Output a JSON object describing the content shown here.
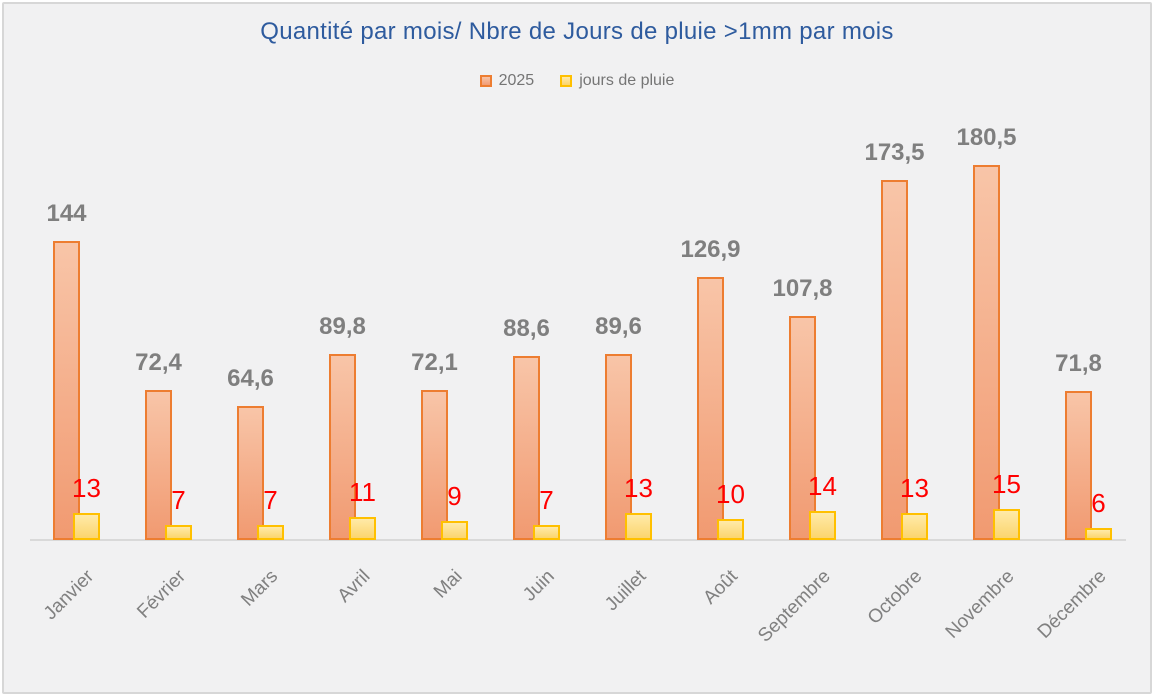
{
  "chart_data": {
    "type": "bar",
    "title": "Quantité par mois/ Nbre de Jours de pluie >1mm par mois",
    "categories": [
      "Janvier",
      "Février",
      "Mars",
      "Avril",
      "Mai",
      "Juin",
      "Juillet",
      "Août",
      "Septembre",
      "Octobre",
      "Novembre",
      "Décembre"
    ],
    "series": [
      {
        "name": "2025",
        "values": [
          144,
          72.4,
          64.6,
          89.8,
          72.1,
          88.6,
          89.6,
          126.9,
          107.8,
          173.5,
          180.5,
          71.8
        ],
        "labels": [
          "144",
          "72,4",
          "64,6",
          "89,8",
          "72,1",
          "88,6",
          "89,6",
          "126,9",
          "107,8",
          "173,5",
          "180,5",
          "71,8"
        ],
        "color": "#ED7D31",
        "label_color": "#7F7F7F"
      },
      {
        "name": "jours de pluie",
        "values": [
          13,
          7,
          7,
          11,
          9,
          7,
          13,
          10,
          14,
          13,
          15,
          6
        ],
        "labels": [
          "13",
          "7",
          "7",
          "11",
          "9",
          "7",
          "13",
          "10",
          "14",
          "13",
          "15",
          "6"
        ],
        "color": "#FFC000",
        "label_color": "#FF0000"
      }
    ],
    "legend_position": "top",
    "grid": false,
    "y_axis_visible": false,
    "xlabel": "",
    "ylabel": ""
  },
  "colors": {
    "background": "#F1F1F2",
    "frame_border": "#D7D7D7",
    "title": "#2E5B9E",
    "axis_line": "#D9D9D9",
    "bar_2025_border": "#ED7D31",
    "bar_2025_fill_top": "#F8C5A8",
    "bar_2025_fill_bottom": "#F19A71",
    "bar_jours_border": "#FFC000",
    "bar_jours_fill_top": "#FFEAA8",
    "bar_jours_fill_bottom": "#FBD56E",
    "quantity_label": "#7F7F7F",
    "rain_days_label": "#FF0000",
    "month_label": "#808080",
    "legend_text": "#757575"
  }
}
